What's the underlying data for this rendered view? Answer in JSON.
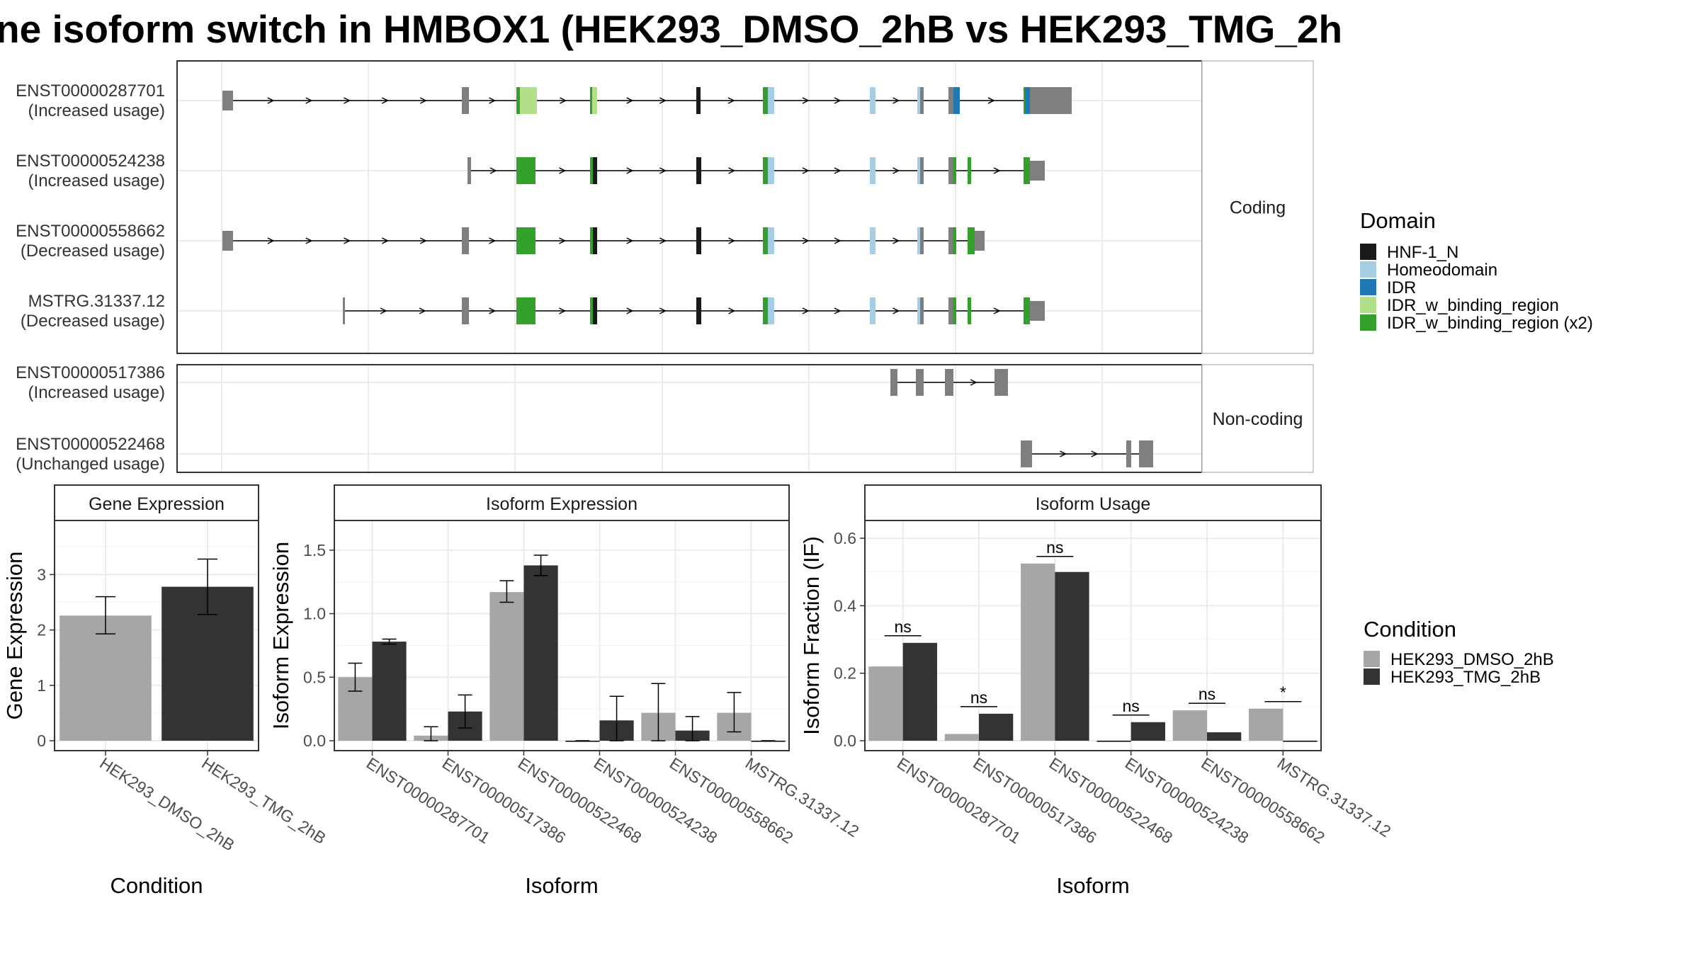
{
  "title": "ne isoform switch in HMBOX1 (HEK293_DMSO_2hB vs HEK293_TMG_2h",
  "structure": {
    "coding_label": "Coding",
    "noncoding_label": "Non-coding",
    "coding": [
      {
        "id": "ENST00000287701",
        "usage": "(Increased usage)"
      },
      {
        "id": "ENST00000524238",
        "usage": "(Increased usage)"
      },
      {
        "id": "ENST00000558662",
        "usage": "(Decreased usage)"
      },
      {
        "id": "MSTRG.31337.12",
        "usage": "(Decreased usage)"
      }
    ],
    "noncoding": [
      {
        "id": "ENST00000517386",
        "usage": "(Increased usage)"
      },
      {
        "id": "ENST00000522468",
        "usage": "(Unchanged usage)"
      }
    ]
  },
  "domain_legend": {
    "title": "Domain",
    "items": [
      {
        "label": "HNF-1_N",
        "color": "#1a1a1a"
      },
      {
        "label": "Homeodomain",
        "color": "#a6cee3"
      },
      {
        "label": "IDR",
        "color": "#1f78b4"
      },
      {
        "label": "IDR_w_binding_region",
        "color": "#b2df8a"
      },
      {
        "label": "IDR_w_binding_region (x2)",
        "color": "#33a02c"
      }
    ]
  },
  "condition_legend": {
    "title": "Condition",
    "items": [
      {
        "label": "HEK293_DMSO_2hB",
        "color": "#a6a6a6"
      },
      {
        "label": "HEK293_TMG_2hB",
        "color": "#333333"
      }
    ]
  },
  "chart_data": [
    {
      "type": "bar",
      "title": "Gene Expression",
      "xlabel": "Condition",
      "ylabel": "Gene Expression",
      "ylim": [
        0,
        3.9
      ],
      "yticks": [
        0,
        1,
        2,
        3
      ],
      "categories": [
        "HEK293_DMSO_2hB",
        "HEK293_TMG_2hB"
      ],
      "values": [
        2.26,
        2.78
      ],
      "errors": [
        [
          1.93,
          2.6
        ],
        [
          2.28,
          3.28
        ]
      ],
      "grid": true
    },
    {
      "type": "bar",
      "title": "Isoform Expression",
      "xlabel": "Isoform",
      "ylabel": "Isoform Expression",
      "ylim": [
        0,
        1.7
      ],
      "yticks": [
        0.0,
        0.5,
        1.0,
        1.5
      ],
      "categories": [
        "ENST00000287701",
        "ENST00000517386",
        "ENST00000522468",
        "ENST00000524238",
        "ENST00000558662",
        "MSTRG.31337.12"
      ],
      "series": [
        {
          "name": "HEK293_DMSO_2hB",
          "values": [
            0.5,
            0.04,
            1.17,
            0.0,
            0.22,
            0.22
          ],
          "errors": [
            [
              0.39,
              0.61
            ],
            [
              0.0,
              0.11
            ],
            [
              1.09,
              1.26
            ],
            [
              0.0,
              0.0
            ],
            [
              0.0,
              0.45
            ],
            [
              0.07,
              0.38
            ]
          ]
        },
        {
          "name": "HEK293_TMG_2hB",
          "values": [
            0.78,
            0.23,
            1.38,
            0.16,
            0.08,
            0.0
          ],
          "errors": [
            [
              0.76,
              0.8
            ],
            [
              0.1,
              0.36
            ],
            [
              1.3,
              1.46
            ],
            [
              0.0,
              0.35
            ],
            [
              0.0,
              0.19
            ],
            [
              0.0,
              0.0
            ]
          ]
        }
      ],
      "grid": true
    },
    {
      "type": "bar",
      "title": "Isoform Usage",
      "xlabel": "Isoform",
      "ylabel": "Isoform Fraction (IF)",
      "ylim": [
        0,
        0.64
      ],
      "yticks": [
        0.0,
        0.2,
        0.4,
        0.6
      ],
      "categories": [
        "ENST00000287701",
        "ENST00000517386",
        "ENST00000522468",
        "ENST00000524238",
        "ENST00000558662",
        "MSTRG.31337.12"
      ],
      "series": [
        {
          "name": "HEK293_DMSO_2hB",
          "values": [
            0.22,
            0.02,
            0.525,
            0.0,
            0.09,
            0.095
          ]
        },
        {
          "name": "HEK293_TMG_2hB",
          "values": [
            0.29,
            0.08,
            0.5,
            0.055,
            0.025,
            0.0
          ]
        }
      ],
      "significance": [
        "ns",
        "ns",
        "ns",
        "ns",
        "ns",
        "*"
      ],
      "grid": true
    }
  ]
}
